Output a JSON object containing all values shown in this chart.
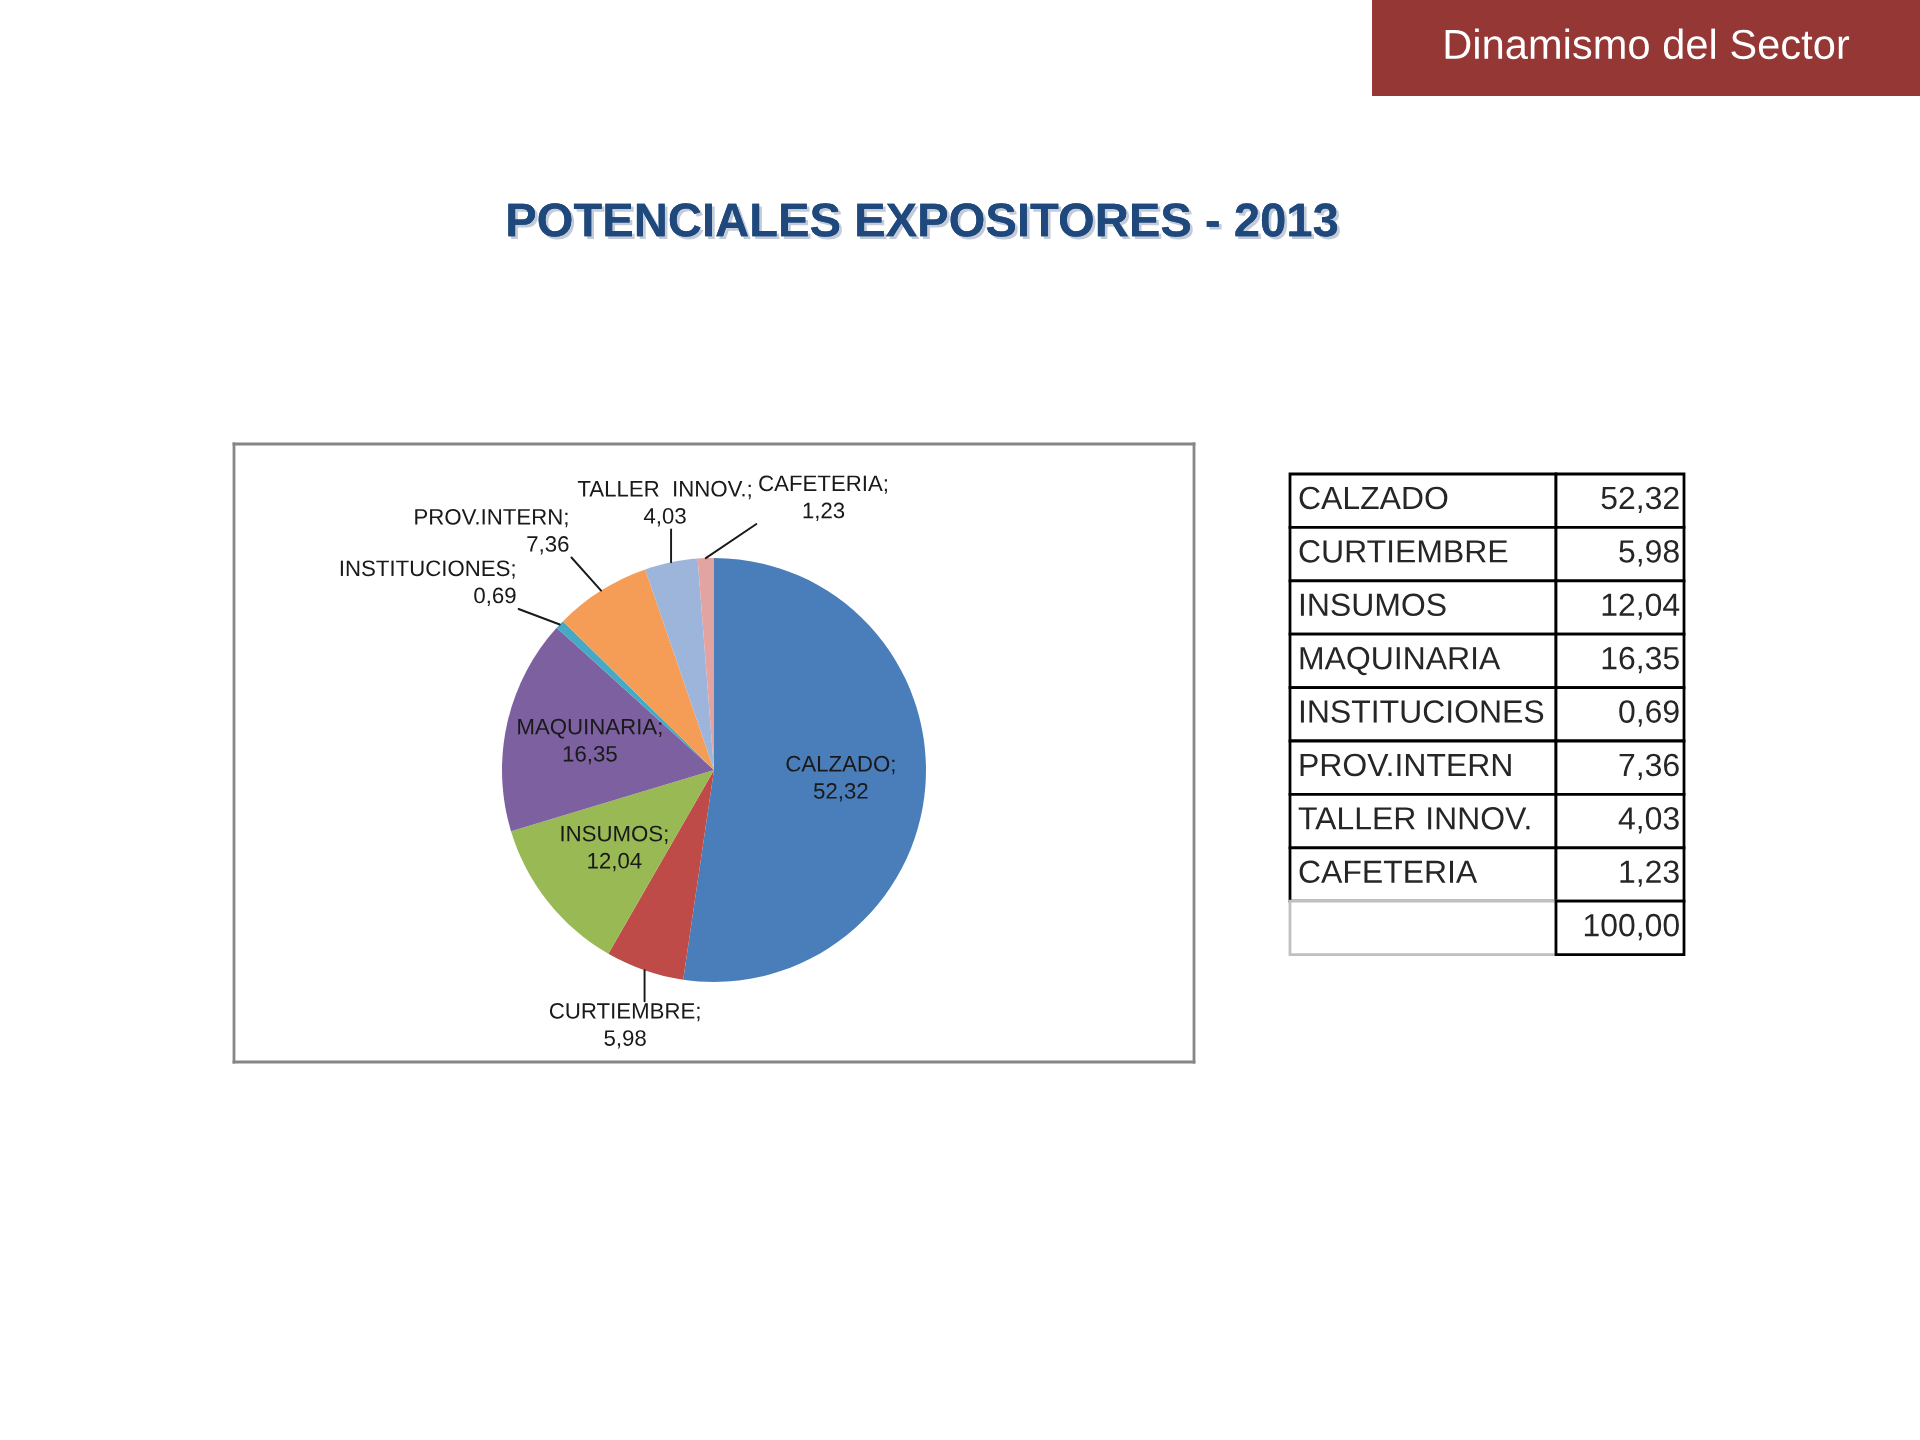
{
  "chart_data": [
    {
      "type": "pie",
      "title": "POTENCIALES EXPOSITORES - 2013",
      "categories": [
        null,
        null,
        null,
        null,
        null,
        null,
        null,
        null
      ],
      "values": [
        52.32,
        5.98,
        12.04,
        16.35,
        0.69,
        7.36,
        4.03,
        1.23
      ],
      "colors": [
        "#4a7ebb",
        "#be4b48",
        "#98b954",
        "#7d60a0",
        "#46aac5",
        "#f59d56",
        "#9db5da",
        "#e3a3a1"
      ],
      "value_labels": [
        "CALZADO;\n52,32",
        "CURTIEMBRE;\n5,98",
        "INSUMOS;\n12,04",
        "MAQUINARIA;\n16,35",
        "INSTITUCIONES;\n0,69",
        "PROV.INTERN;\n7,36",
        "TALLER  INNOV.;\n4,03",
        "CAFETERIA;\n1,23"
      ],
      "annotations": [
        "Dinamismo del Sector"
      ]
    },
    {
      "type": "other",
      "categories": [
        "CALZADO",
        "CURTIEMBRE",
        "INSUMOS",
        "MAQUINARIA",
        "INSTITUCIONES",
        "PROV.INTERN",
        "TALLER INNOV.",
        "CAFETERIA",
        null
      ],
      "value_labels": [
        "52,32",
        "5,98",
        "12,04",
        "16,35",
        "0,69",
        "7,36",
        "4,03",
        "1,23",
        "100,00"
      ]
    }
  ]
}
